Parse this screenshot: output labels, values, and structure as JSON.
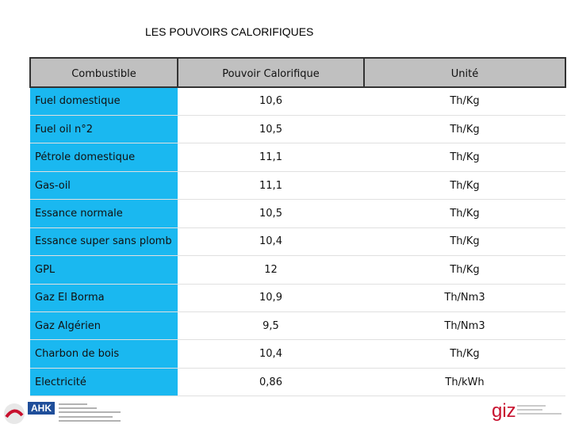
{
  "header": {
    "title": "LES POUVOIRS CALORIFIQUES"
  },
  "table": {
    "columns": [
      "Combustible",
      "Pouvoir Calorifique",
      "Unité"
    ],
    "rows": [
      [
        "Fuel domestique",
        "10,6",
        "Th/Kg"
      ],
      [
        "Fuel oil n°2",
        "10,5",
        "Th/Kg"
      ],
      [
        "Pétrole domestique",
        "11,1",
        "Th/Kg"
      ],
      [
        "Gas-oil",
        "11,1",
        "Th/Kg"
      ],
      [
        "Essance normale",
        "10,5",
        "Th/Kg"
      ],
      [
        "Essance super sans plomb",
        "10,4",
        "Th/Kg"
      ],
      [
        "GPL",
        "12",
        "Th/Kg"
      ],
      [
        "Gaz El Borma",
        "10,9",
        "Th/Nm3"
      ],
      [
        "Gaz Algérien",
        "9,5",
        "Th/Nm3"
      ],
      [
        "Charbon de bois",
        "10,4",
        "Th/Kg"
      ],
      [
        "Electricité",
        "0,86",
        "Th/kWh"
      ]
    ]
  },
  "footer": {
    "left_logo": "AHK",
    "right_logo": "giz"
  }
}
